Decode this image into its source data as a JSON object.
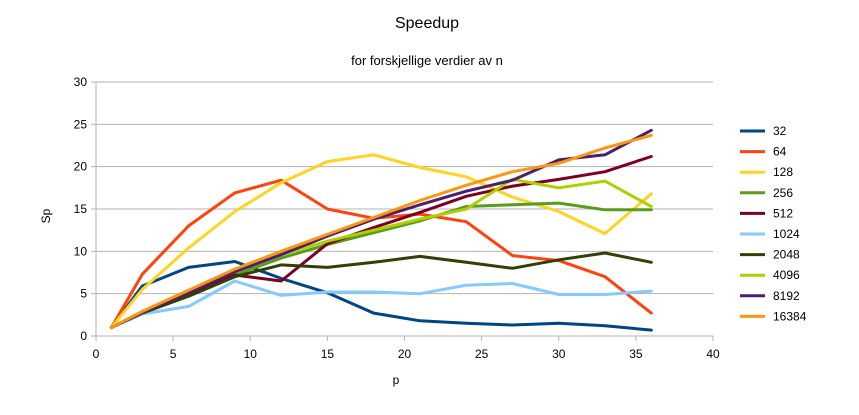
{
  "chart_data": {
    "type": "line",
    "title": "Speedup",
    "subtitle": "for forskjellige verdier av n",
    "xlabel": "p",
    "ylabel": "Sp",
    "xlim": [
      0,
      40
    ],
    "ylim": [
      0,
      30
    ],
    "x_ticks": [
      0,
      5,
      10,
      15,
      20,
      25,
      30,
      35,
      40
    ],
    "y_ticks": [
      0,
      5,
      10,
      15,
      20,
      25,
      30
    ],
    "grid": "horizontal",
    "legend_position": "right",
    "x": [
      1,
      3,
      6,
      9,
      12,
      15,
      18,
      21,
      24,
      27,
      30,
      33,
      36
    ],
    "series": [
      {
        "name": "32",
        "color": "#004586",
        "values": [
          1,
          5.9,
          8.1,
          8.8,
          6.8,
          5.1,
          2.7,
          1.8,
          1.5,
          1.3,
          1.5,
          1.2,
          0.7
        ]
      },
      {
        "name": "64",
        "color": "#ff420e",
        "values": [
          1,
          7.3,
          13.0,
          16.9,
          18.4,
          15.0,
          13.9,
          14.4,
          13.5,
          9.5,
          8.9,
          7.0,
          2.7
        ]
      },
      {
        "name": "128",
        "color": "#ffd320",
        "values": [
          1,
          5.5,
          10.4,
          14.7,
          18.1,
          20.6,
          21.4,
          19.9,
          18.8,
          16.4,
          14.7,
          12.1,
          16.8
        ]
      },
      {
        "name": "256",
        "color": "#579d1c",
        "values": [
          1,
          2.7,
          4.9,
          7.2,
          9.2,
          10.8,
          12.2,
          13.6,
          15.3,
          15.5,
          15.7,
          14.9,
          14.9
        ]
      },
      {
        "name": "512",
        "color": "#7e0021",
        "values": [
          1,
          2.8,
          4.9,
          7.2,
          6.5,
          10.9,
          12.8,
          14.6,
          16.5,
          17.7,
          18.5,
          19.4,
          21.2
        ]
      },
      {
        "name": "1024",
        "color": "#83caff",
        "values": [
          1,
          2.6,
          3.5,
          6.5,
          4.8,
          5.2,
          5.2,
          5.0,
          6.0,
          6.2,
          4.9,
          4.9,
          5.3
        ]
      },
      {
        "name": "2048",
        "color": "#314004",
        "values": [
          1,
          2.7,
          4.7,
          7.0,
          8.4,
          8.1,
          8.7,
          9.4,
          8.7,
          8.0,
          9.0,
          9.8,
          8.7
        ]
      },
      {
        "name": "4096",
        "color": "#aecf00",
        "values": [
          1,
          2.8,
          5.3,
          7.6,
          9.6,
          11.2,
          12.5,
          13.8,
          15.0,
          18.5,
          17.5,
          18.3,
          15.3
        ]
      },
      {
        "name": "8192",
        "color": "#4b1f6f",
        "values": [
          1,
          2.8,
          5.1,
          7.6,
          9.6,
          11.8,
          13.8,
          15.5,
          17.1,
          18.4,
          20.8,
          21.4,
          24.3
        ]
      },
      {
        "name": "16384",
        "color": "#ff950e",
        "values": [
          1,
          2.9,
          5.4,
          7.9,
          10.0,
          12.0,
          14.0,
          16.0,
          17.8,
          19.4,
          20.4,
          22.2,
          23.7
        ]
      }
    ]
  }
}
